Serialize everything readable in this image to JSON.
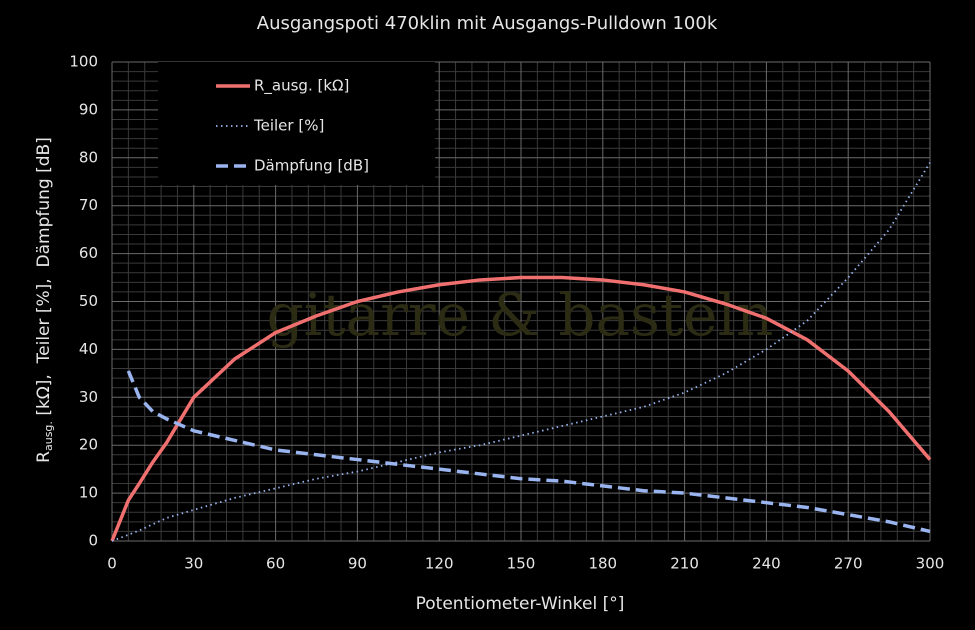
{
  "chart_data": {
    "type": "line",
    "title": "Ausgangspoti 470klin mit Ausgangs-Pulldown 100k",
    "xlabel": "Potentiometer-Winkel  [°]",
    "ylabel": {
      "main": "R",
      "sub": "ausg.",
      "rest": " [kΩ],  Teiler [%],  Dämpfung [dB]"
    },
    "watermark": "gitarre & basteln",
    "x": [
      0,
      6,
      10,
      15,
      20,
      30,
      45,
      60,
      75,
      90,
      105,
      120,
      135,
      150,
      165,
      180,
      195,
      210,
      225,
      240,
      255,
      270,
      285,
      300
    ],
    "series": [
      {
        "name": "R_ausg. [kΩ]",
        "color": "#f07070",
        "style": "solid",
        "values": [
          0,
          8.5,
          12,
          16.5,
          20.5,
          30,
          38,
          43.5,
          47,
          50,
          52,
          53.5,
          54.5,
          55,
          55,
          54.5,
          53.5,
          52,
          49.5,
          46.5,
          42,
          35.5,
          27,
          17
        ]
      },
      {
        "name": "Teiler [%]",
        "color": "#99b4ee",
        "style": "dotted",
        "values": [
          0,
          1.3,
          2.2,
          3.5,
          4.8,
          6.5,
          9,
          11,
          13,
          14.5,
          16.5,
          18.5,
          20,
          22,
          24,
          26,
          28,
          31,
          35,
          40,
          46,
          55,
          65,
          79
        ]
      },
      {
        "name": "Dämpfung [dB]",
        "color": "#99b4ee",
        "style": "dashed",
        "values": [
          null,
          35.5,
          30,
          27,
          25.5,
          23,
          21,
          19,
          18,
          17,
          16,
          15,
          14,
          13,
          12.5,
          11.5,
          10.5,
          10,
          9,
          8,
          7,
          5.5,
          4,
          2
        ]
      }
    ],
    "xlim": [
      0,
      300
    ],
    "xticks": [
      0,
      30,
      60,
      90,
      120,
      150,
      180,
      210,
      240,
      270,
      300
    ],
    "ylim": [
      0,
      100
    ],
    "yticks": [
      0,
      10,
      20,
      30,
      40,
      50,
      60,
      70,
      80,
      90,
      100
    ],
    "grid": true,
    "minor_grid": 5,
    "legend": "upper left"
  }
}
